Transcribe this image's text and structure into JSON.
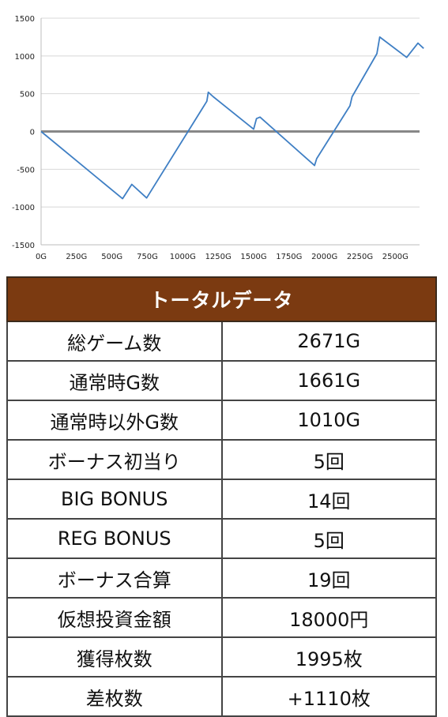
{
  "chart_data": {
    "type": "line",
    "y_ticks": [
      "1500",
      "1000",
      "500",
      "0",
      "-500",
      "-1000",
      "-1500"
    ],
    "x_ticks": [
      "0G",
      "250G",
      "500G",
      "750G",
      "1000G",
      "1250G",
      "1500G",
      "1750G",
      "2000G",
      "2250G",
      "2500G"
    ],
    "xlim": [
      0,
      2671
    ],
    "ylim": [
      -1500,
      1500
    ],
    "series": [
      {
        "color": "#3f7fc4",
        "points": [
          [
            0,
            0
          ],
          [
            575,
            -890
          ],
          [
            640,
            -700
          ],
          [
            745,
            -880
          ],
          [
            1170,
            400
          ],
          [
            1180,
            520
          ],
          [
            1215,
            460
          ],
          [
            1500,
            30
          ],
          [
            1520,
            170
          ],
          [
            1545,
            190
          ],
          [
            1930,
            -450
          ],
          [
            1945,
            -360
          ],
          [
            2180,
            340
          ],
          [
            2195,
            460
          ],
          [
            2370,
            1030
          ],
          [
            2390,
            1250
          ],
          [
            2580,
            980
          ],
          [
            2660,
            1170
          ],
          [
            2700,
            1100
          ]
        ]
      }
    ],
    "zero_line_color": "#888888"
  },
  "table": {
    "header": "トータルデータ",
    "rows": [
      {
        "label": "総ゲーム数",
        "value": "2671G"
      },
      {
        "label": "通常時G数",
        "value": "1661G"
      },
      {
        "label": "通常時以外G数",
        "value": "1010G"
      },
      {
        "label": "ボーナス初当り",
        "value": "5回"
      },
      {
        "label": "BIG BONUS",
        "value": "14回"
      },
      {
        "label": "REG BONUS",
        "value": "5回"
      },
      {
        "label": "ボーナス合算",
        "value": "19回"
      },
      {
        "label": "仮想投資金額",
        "value": "18000円"
      },
      {
        "label": "獲得枚数",
        "value": "1995枚"
      },
      {
        "label": "差枚数",
        "value": "+1110枚"
      }
    ],
    "header_color": "#7b3a11"
  }
}
